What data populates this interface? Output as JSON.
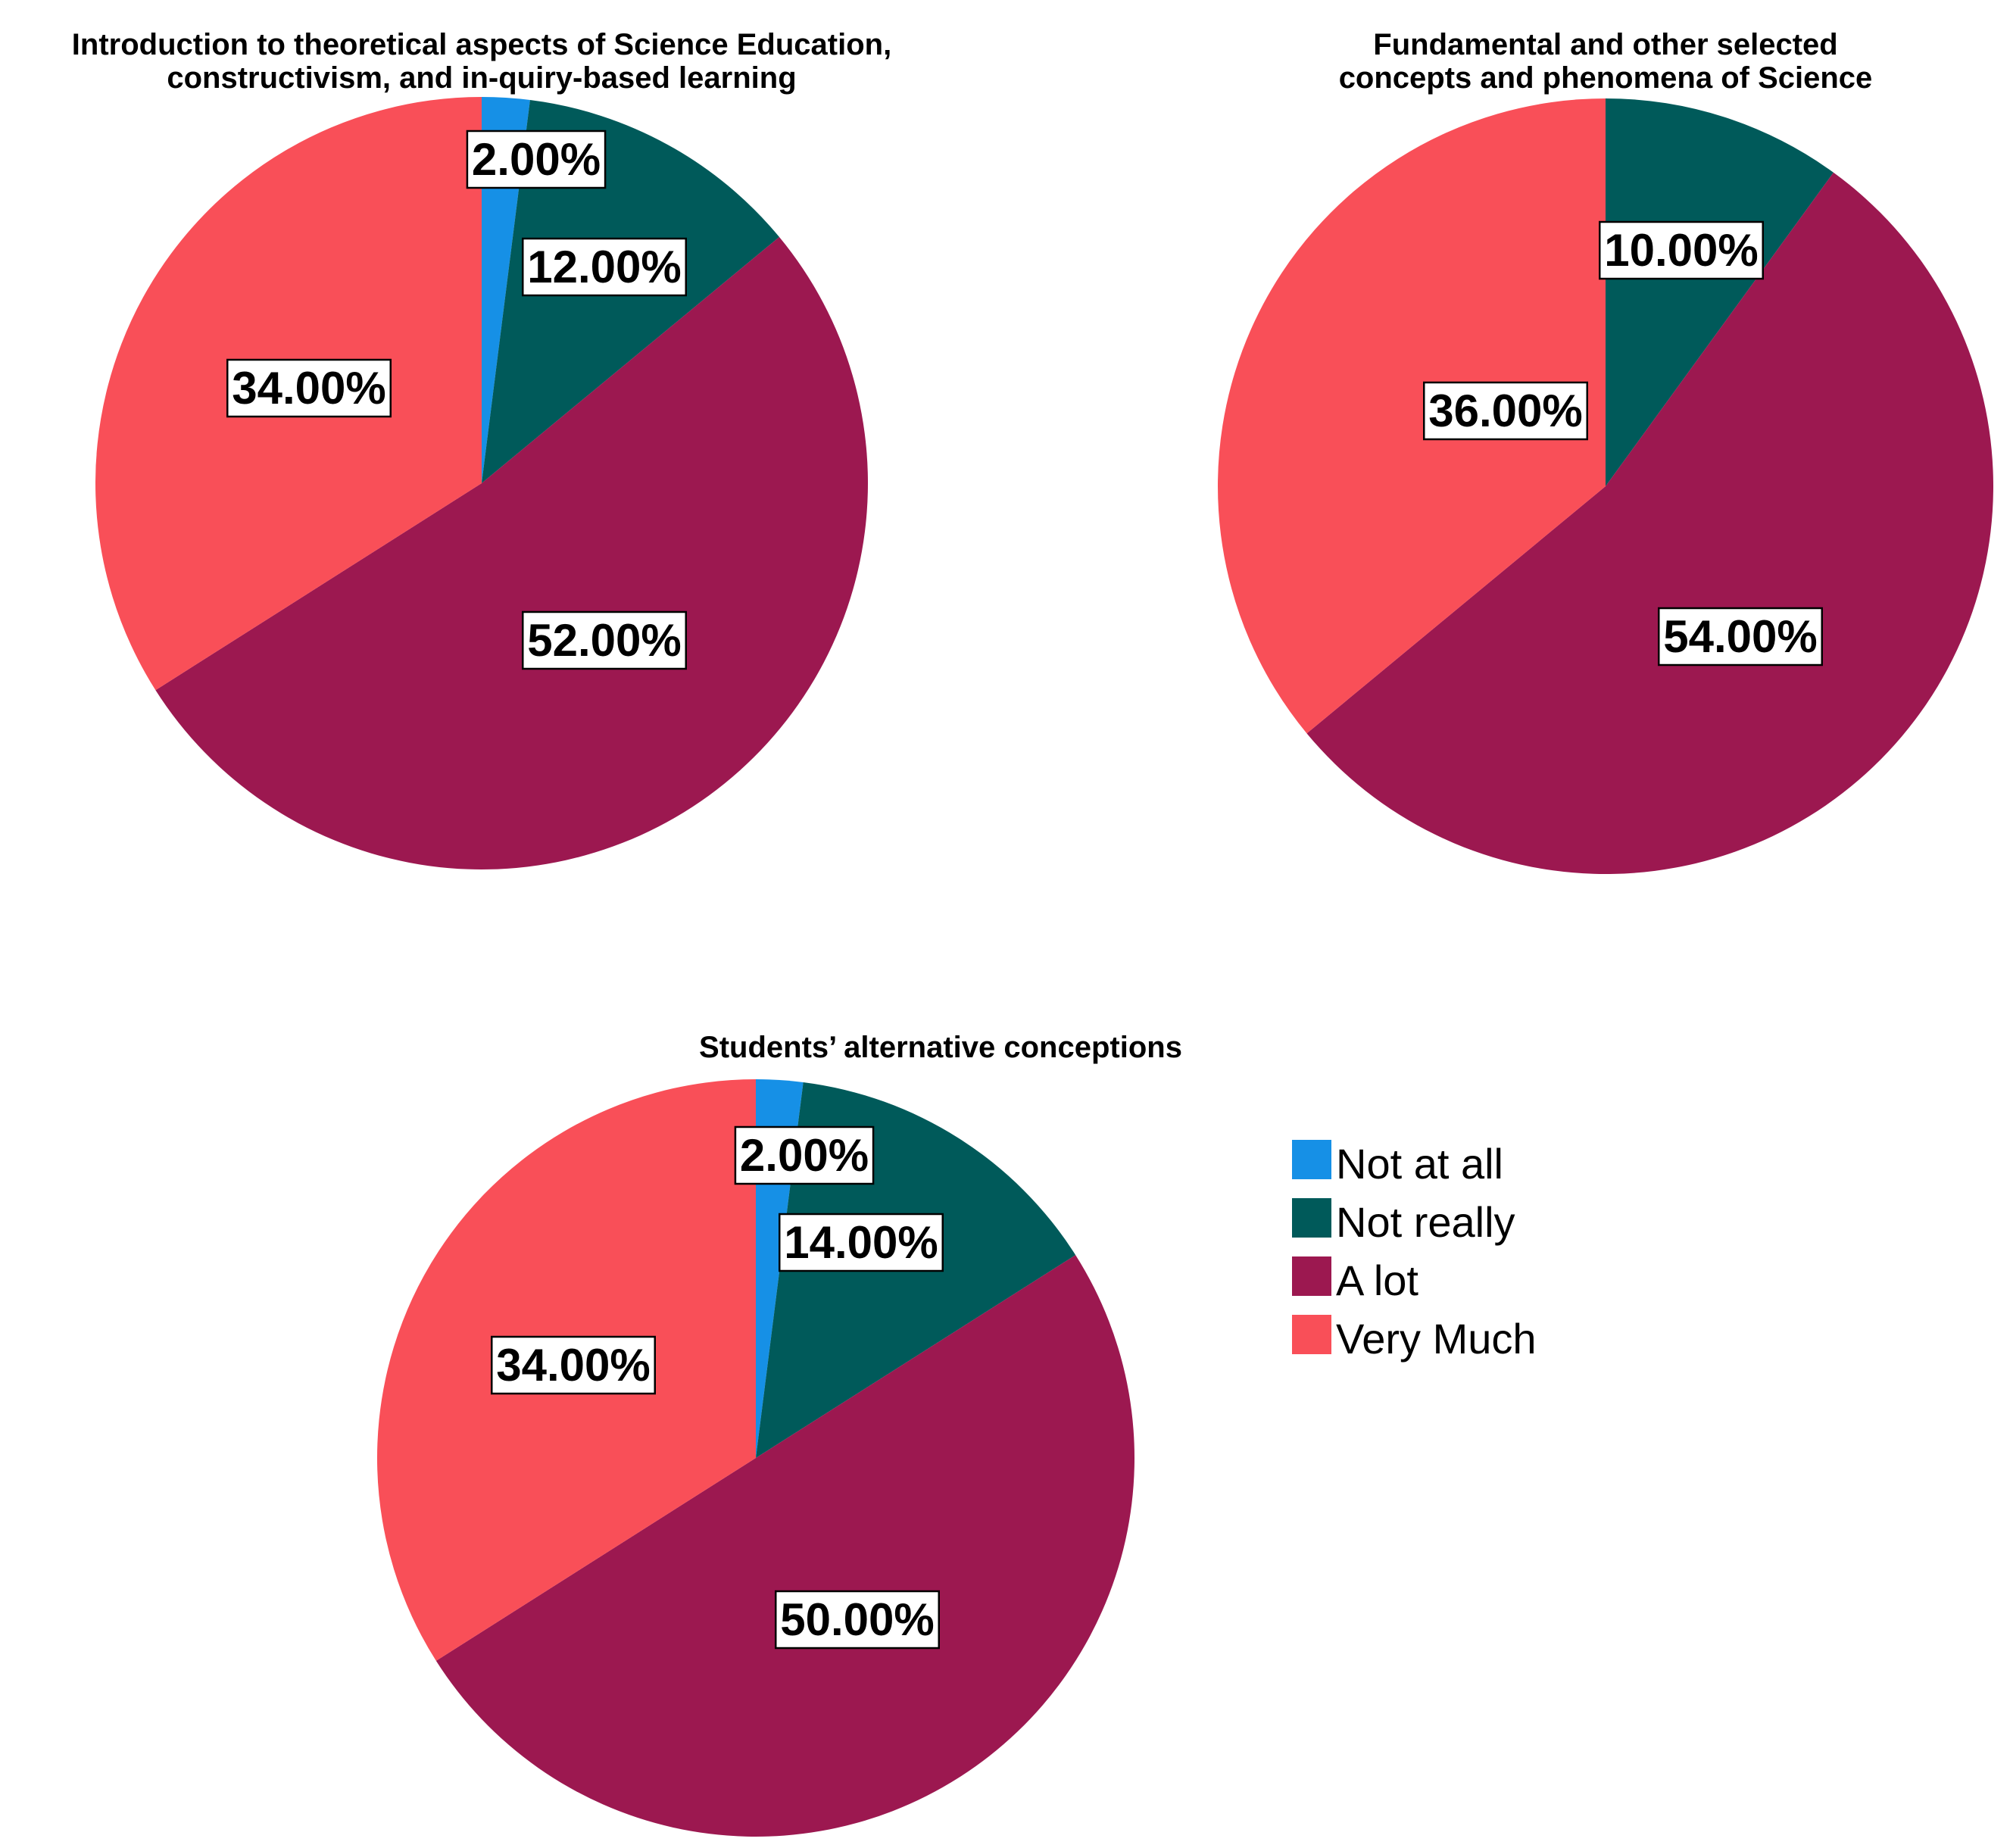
{
  "legend": {
    "title": "",
    "items": [
      {
        "label": "Not at all",
        "color": "#1690E6"
      },
      {
        "label": "Not really",
        "color": "#005A5A"
      },
      {
        "label": "A lot",
        "color": "#9C1850"
      },
      {
        "label": "Very Much",
        "color": "#F94F58"
      }
    ]
  },
  "chart_data": [
    {
      "type": "pie",
      "title_lines": [
        "Introduction to theoretical aspects of Science Education,",
        "constructivism, and in-quiry-based learning"
      ],
      "categories": [
        "Not at all",
        "Not really",
        "A lot",
        "Very Much"
      ],
      "values": [
        2,
        12,
        52,
        34
      ],
      "labels": [
        "2.00%",
        "12.00%",
        "52.00%",
        "34.00%"
      ],
      "start_angle_deg": 0,
      "direction": "clockwise"
    },
    {
      "type": "pie",
      "title_lines": [
        "Fundamental and other selected",
        "concepts and phenomena of Science"
      ],
      "categories": [
        "Not at all",
        "Not really",
        "A lot",
        "Very Much"
      ],
      "values": [
        0,
        10,
        54,
        36
      ],
      "labels": [
        "",
        "10.00%",
        "54.00%",
        "36.00%"
      ],
      "start_angle_deg": 0,
      "direction": "clockwise"
    },
    {
      "type": "pie",
      "title_lines": [
        "Students’ alternative conceptions"
      ],
      "categories": [
        "Not at all",
        "Not really",
        "A lot",
        "Very Much"
      ],
      "values": [
        2,
        14,
        50,
        34
      ],
      "labels": [
        "2.00%",
        "14.00%",
        "50.00%",
        "34.00%"
      ],
      "start_angle_deg": 0,
      "direction": "clockwise"
    }
  ]
}
